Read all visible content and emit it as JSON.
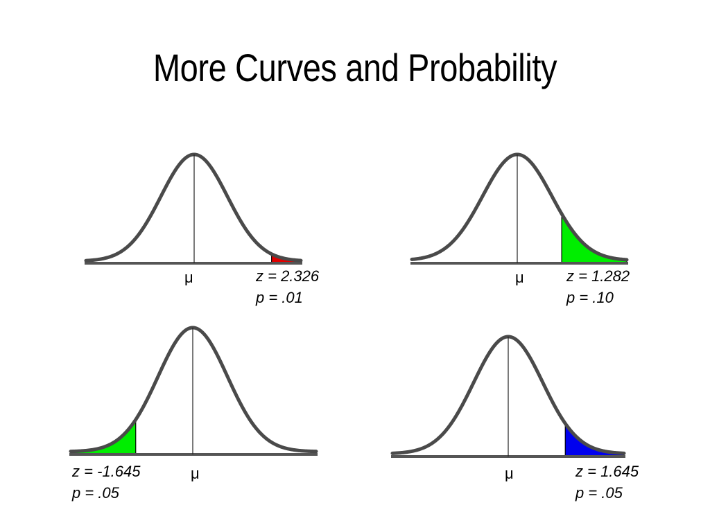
{
  "title": "More Curves and Probability",
  "panels": [
    {
      "id": "top-left",
      "mean_label": "μ",
      "z_text": "z = 2.326",
      "p_text": "p = .01",
      "z": 2.326,
      "p": 0.01,
      "tail": "right",
      "shade_color": "#e00000"
    },
    {
      "id": "top-right",
      "mean_label": "μ",
      "z_text": "z = 1.282",
      "p_text": "p = .10",
      "z": 1.282,
      "p": 0.1,
      "tail": "right",
      "shade_color": "#00ee00"
    },
    {
      "id": "bottom-left",
      "mean_label": "μ",
      "z_text": "z = -1.645",
      "p_text": "p = .05",
      "z": -1.645,
      "p": 0.05,
      "tail": "left",
      "shade_color": "#00ee00"
    },
    {
      "id": "bottom-right",
      "mean_label": "μ",
      "z_text": "z = 1.645",
      "p_text": "p = .05",
      "z": 1.645,
      "p": 0.05,
      "tail": "right",
      "shade_color": "#0000ee"
    }
  ],
  "colors": {
    "curve": "#4a4a4a",
    "axis": "#555555",
    "mean_line": "#222222"
  }
}
